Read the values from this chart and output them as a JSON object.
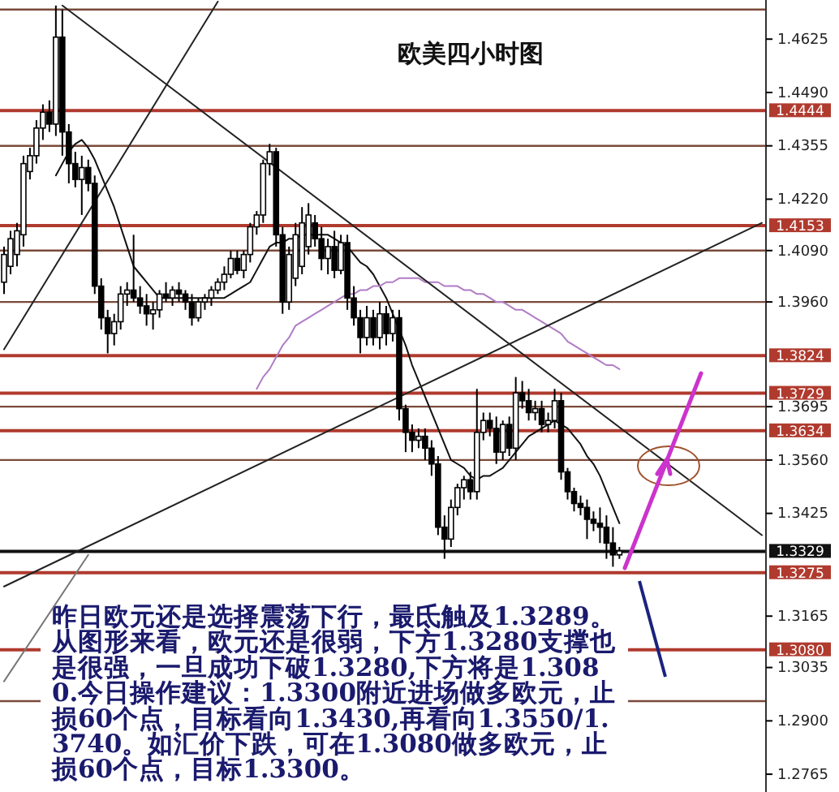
{
  "chart_data": {
    "type": "candlestick",
    "title": "欧美四小时图",
    "categories": [
      null,
      null,
      null,
      null,
      null,
      null,
      null,
      null,
      null,
      null,
      null,
      null,
      null,
      null,
      null,
      null,
      null,
      null,
      null,
      null,
      null,
      null,
      null,
      null,
      null,
      null,
      null,
      null,
      null,
      null,
      null,
      null,
      null,
      null,
      null,
      null,
      null,
      null,
      null,
      null,
      null,
      null,
      null,
      null,
      null,
      null,
      null,
      null,
      null,
      null,
      null,
      null,
      null,
      null,
      null,
      null,
      null,
      null,
      null,
      null,
      null,
      null,
      null,
      null,
      null,
      null,
      null,
      null,
      null,
      null,
      null,
      null,
      null,
      null,
      null,
      null,
      null,
      null,
      null,
      null,
      null,
      null,
      null,
      null,
      null,
      null,
      null,
      null,
      null,
      null,
      null,
      null,
      null,
      null,
      null,
      null,
      null,
      null,
      null,
      null,
      null,
      null,
      null,
      null,
      null,
      null,
      null,
      null,
      null,
      null,
      null,
      null,
      null,
      null,
      null,
      null,
      null,
      null
    ],
    "ohlc": [
      [
        1.401,
        1.41,
        1.398,
        1.408
      ],
      [
        1.405,
        1.414,
        1.403,
        1.412
      ],
      [
        1.408,
        1.416,
        1.405,
        1.414
      ],
      [
        1.413,
        1.433,
        1.41,
        1.431
      ],
      [
        1.429,
        1.435,
        1.427,
        1.433
      ],
      [
        1.433,
        1.442,
        1.431,
        1.44
      ],
      [
        1.44,
        1.446,
        1.437,
        1.444
      ],
      [
        1.444,
        1.447,
        1.439,
        1.441
      ],
      [
        1.441,
        1.471,
        1.438,
        1.463
      ],
      [
        1.463,
        1.47,
        1.433,
        1.439
      ],
      [
        1.439,
        1.441,
        1.426,
        1.431
      ],
      [
        1.431,
        1.434,
        1.425,
        1.427
      ],
      [
        1.427,
        1.433,
        1.418,
        1.43
      ],
      [
        1.43,
        1.432,
        1.424,
        1.426
      ],
      [
        1.426,
        1.428,
        1.398,
        1.4
      ],
      [
        1.4,
        1.402,
        1.389,
        1.392
      ],
      [
        1.392,
        1.394,
        1.383,
        1.388
      ],
      [
        1.388,
        1.393,
        1.385,
        1.391
      ],
      [
        1.391,
        1.4,
        1.389,
        1.398
      ],
      [
        1.398,
        1.401,
        1.395,
        1.399
      ],
      [
        1.399,
        1.413,
        1.396,
        1.397
      ],
      [
        1.397,
        1.4,
        1.393,
        1.395
      ],
      [
        1.395,
        1.398,
        1.39,
        1.393
      ],
      [
        1.393,
        1.396,
        1.389,
        1.394
      ],
      [
        1.394,
        1.399,
        1.392,
        1.398
      ],
      [
        1.398,
        1.401,
        1.396,
        1.397
      ],
      [
        1.397,
        1.4,
        1.395,
        1.399
      ],
      [
        1.399,
        1.401,
        1.396,
        1.398
      ],
      [
        1.398,
        1.399,
        1.394,
        1.396
      ],
      [
        1.396,
        1.398,
        1.39,
        1.392
      ],
      [
        1.392,
        1.397,
        1.391,
        1.396
      ],
      [
        1.396,
        1.398,
        1.394,
        1.397
      ],
      [
        1.397,
        1.4,
        1.395,
        1.399
      ],
      [
        1.399,
        1.402,
        1.398,
        1.401
      ],
      [
        1.401,
        1.405,
        1.399,
        1.403
      ],
      [
        1.403,
        1.409,
        1.402,
        1.407
      ],
      [
        1.407,
        1.409,
        1.403,
        1.404
      ],
      [
        1.404,
        1.409,
        1.402,
        1.408
      ],
      [
        1.408,
        1.416,
        1.406,
        1.415
      ],
      [
        1.415,
        1.419,
        1.413,
        1.418
      ],
      [
        1.418,
        1.432,
        1.416,
        1.431
      ],
      [
        1.431,
        1.436,
        1.428,
        1.434
      ],
      [
        1.434,
        1.435,
        1.41,
        1.413
      ],
      [
        1.413,
        1.415,
        1.393,
        1.396
      ],
      [
        1.396,
        1.41,
        1.394,
        1.408
      ],
      [
        1.402,
        1.416,
        1.4,
        1.413
      ],
      [
        1.405,
        1.42,
        1.403,
        1.416
      ],
      [
        1.41,
        1.421,
        1.408,
        1.418
      ],
      [
        1.416,
        1.418,
        1.41,
        1.412
      ],
      [
        1.412,
        1.415,
        1.404,
        1.407
      ],
      [
        1.407,
        1.412,
        1.403,
        1.41
      ],
      [
        1.41,
        1.414,
        1.402,
        1.404
      ],
      [
        1.404,
        1.413,
        1.403,
        1.411
      ],
      [
        1.411,
        1.413,
        1.394,
        1.397
      ],
      [
        1.397,
        1.4,
        1.39,
        1.392
      ],
      [
        1.392,
        1.394,
        1.383,
        1.387
      ],
      [
        1.387,
        1.395,
        1.385,
        1.392
      ],
      [
        1.392,
        1.394,
        1.385,
        1.387
      ],
      [
        1.387,
        1.396,
        1.384,
        1.393
      ],
      [
        1.393,
        1.395,
        1.385,
        1.388
      ],
      [
        1.388,
        1.394,
        1.386,
        1.392
      ],
      [
        1.392,
        1.394,
        1.366,
        1.369
      ],
      [
        1.369,
        1.37,
        1.358,
        1.363
      ],
      [
        1.363,
        1.365,
        1.358,
        1.361
      ],
      [
        1.361,
        1.364,
        1.359,
        1.362
      ],
      [
        1.362,
        1.364,
        1.356,
        1.359
      ],
      [
        1.359,
        1.361,
        1.352,
        1.355
      ],
      [
        1.355,
        1.357,
        1.337,
        1.339
      ],
      [
        1.339,
        1.342,
        1.331,
        1.336
      ],
      [
        1.336,
        1.346,
        1.334,
        1.344
      ],
      [
        1.344,
        1.35,
        1.342,
        1.349
      ],
      [
        1.349,
        1.352,
        1.346,
        1.351
      ],
      [
        1.351,
        1.353,
        1.346,
        1.348
      ],
      [
        1.348,
        1.374,
        1.346,
        1.363
      ],
      [
        1.363,
        1.368,
        1.361,
        1.366
      ],
      [
        1.366,
        1.368,
        1.362,
        1.364
      ],
      [
        1.364,
        1.367,
        1.355,
        1.358
      ],
      [
        1.358,
        1.366,
        1.356,
        1.365
      ],
      [
        1.365,
        1.367,
        1.357,
        1.359
      ],
      [
        1.359,
        1.377,
        1.356,
        1.373
      ],
      [
        1.373,
        1.376,
        1.369,
        1.371
      ],
      [
        1.371,
        1.374,
        1.366,
        1.368
      ],
      [
        1.368,
        1.371,
        1.366,
        1.369
      ],
      [
        1.369,
        1.371,
        1.363,
        1.365
      ],
      [
        1.365,
        1.368,
        1.363,
        1.366
      ],
      [
        1.366,
        1.374,
        1.364,
        1.371
      ],
      [
        1.371,
        1.373,
        1.351,
        1.353
      ],
      [
        1.353,
        1.354,
        1.346,
        1.348
      ],
      [
        1.348,
        1.349,
        1.343,
        1.345
      ],
      [
        1.345,
        1.347,
        1.342,
        1.344
      ],
      [
        1.344,
        1.346,
        1.336,
        1.341
      ],
      [
        1.341,
        1.343,
        1.338,
        1.34
      ],
      [
        1.34,
        1.344,
        1.335,
        1.339
      ],
      [
        1.339,
        1.342,
        1.331,
        1.335
      ],
      [
        1.335,
        1.339,
        1.329,
        1.332
      ],
      [
        1.332,
        1.334,
        1.331,
        1.333
      ],
      null,
      null,
      null,
      null,
      null,
      null,
      null,
      null,
      null,
      null,
      null,
      null,
      null,
      null,
      null,
      null,
      null,
      null,
      null,
      null,
      null,
      null
    ],
    "series": [
      {
        "type": "line",
        "color": "#111111",
        "values": [
          null,
          null,
          null,
          null,
          null,
          null,
          null,
          null,
          1.428,
          1.431,
          1.434,
          1.436,
          1.437,
          1.435,
          1.432,
          1.428,
          1.424,
          1.42,
          1.415,
          1.41,
          1.405,
          1.403,
          1.401,
          1.399,
          1.397,
          1.397,
          1.397,
          1.397,
          1.397,
          1.397,
          1.397,
          1.397,
          1.397,
          1.397,
          1.397,
          1.398,
          1.399,
          1.4,
          1.401,
          1.404,
          1.407,
          1.41,
          1.411,
          1.411,
          1.412,
          1.412,
          1.413,
          1.413,
          1.413,
          1.413,
          1.413,
          1.412,
          1.411,
          1.41,
          1.408,
          1.406,
          1.405,
          1.403,
          1.4,
          1.397,
          1.393,
          1.389,
          1.385,
          1.38,
          1.376,
          1.372,
          1.368,
          1.364,
          1.36,
          1.356,
          1.355,
          1.354,
          1.352,
          1.351,
          1.352,
          1.352,
          1.353,
          1.354,
          1.356,
          1.358,
          1.36,
          1.362,
          1.363,
          1.364,
          1.365,
          1.366,
          1.365,
          1.364,
          1.362,
          1.36,
          1.357,
          1.355,
          1.352,
          1.348,
          1.344,
          1.34,
          null,
          null,
          null,
          null,
          null,
          null,
          null,
          null,
          null,
          null,
          null,
          null,
          null,
          null,
          null,
          null,
          null,
          null,
          null,
          null,
          null,
          null
        ]
      },
      {
        "type": "line",
        "color": "#b07cc6",
        "values": [
          null,
          null,
          null,
          null,
          null,
          null,
          null,
          null,
          null,
          null,
          null,
          null,
          null,
          null,
          null,
          null,
          null,
          null,
          null,
          null,
          null,
          null,
          null,
          null,
          null,
          null,
          null,
          null,
          null,
          null,
          null,
          null,
          null,
          null,
          null,
          null,
          null,
          null,
          null,
          1.374,
          1.377,
          1.379,
          1.382,
          1.385,
          1.387,
          1.39,
          1.391,
          1.392,
          1.393,
          1.394,
          1.395,
          1.396,
          1.397,
          1.398,
          1.398,
          1.399,
          1.399,
          1.4,
          1.4,
          1.401,
          1.401,
          1.402,
          1.402,
          1.402,
          1.402,
          1.401,
          1.401,
          1.401,
          1.4,
          1.4,
          1.4,
          1.399,
          1.399,
          1.398,
          1.398,
          1.397,
          1.396,
          1.396,
          1.395,
          1.394,
          1.394,
          1.393,
          1.392,
          1.391,
          1.39,
          1.389,
          1.388,
          1.386,
          1.385,
          1.384,
          1.383,
          1.382,
          1.381,
          1.38,
          1.38,
          1.379,
          null,
          null,
          null,
          null,
          null,
          null,
          null,
          null,
          null,
          null,
          null,
          null,
          null,
          null,
          null,
          null,
          null,
          null,
          null,
          null,
          null,
          null
        ]
      },
      {
        "type": "line",
        "color": "#222222",
        "values": [
          null,
          null,
          null,
          null,
          null,
          null,
          null,
          null,
          null,
          1.471,
          null,
          null,
          null,
          null,
          null,
          null,
          null,
          null,
          null,
          null,
          null,
          null,
          null,
          null,
          null,
          null,
          null,
          null,
          null,
          null,
          null,
          null,
          null,
          null,
          null,
          null,
          null,
          null,
          null,
          null,
          null,
          null,
          null,
          null,
          null,
          null,
          null,
          null,
          null,
          null,
          null,
          null,
          null,
          null,
          null,
          null,
          null,
          null,
          null,
          null,
          null,
          null,
          null,
          null,
          null,
          null,
          null,
          null,
          null,
          null,
          null,
          null,
          null,
          null,
          null,
          null,
          null,
          null,
          null,
          null,
          null,
          null,
          null,
          null,
          null,
          null,
          null,
          null,
          null,
          null,
          null,
          null,
          null,
          null,
          null,
          null,
          null,
          null,
          null,
          null,
          null,
          null,
          null,
          null,
          null,
          null,
          null,
          null,
          null,
          null,
          null,
          null,
          null,
          null,
          null,
          null,
          null,
          1.337
        ]
      },
      {
        "type": "line",
        "color": "#222222",
        "values": [
          1.384,
          null,
          null,
          null,
          null,
          null,
          null,
          null,
          null,
          null,
          null,
          null,
          null,
          null,
          null,
          null,
          null,
          null,
          null,
          null,
          null,
          null,
          null,
          null,
          null,
          null,
          null,
          null,
          null,
          null,
          null,
          null,
          null,
          1.472,
          null,
          null,
          null,
          null,
          null,
          null,
          null,
          null,
          null,
          null,
          null,
          null,
          null,
          null,
          null,
          null,
          null,
          null,
          null,
          null,
          null,
          null,
          null,
          null,
          null,
          null,
          null,
          null,
          null,
          null,
          null,
          null,
          null,
          null,
          null,
          null,
          null,
          null,
          null,
          null,
          null,
          null,
          null,
          null,
          null,
          null,
          null,
          null,
          null,
          null,
          null,
          null,
          null,
          null,
          null,
          null,
          null,
          null,
          null,
          null,
          null,
          null,
          null,
          null,
          null,
          null,
          null,
          null,
          null,
          null,
          null,
          null,
          null,
          null,
          null,
          null,
          null,
          null,
          null,
          null,
          null,
          null,
          null,
          null
        ]
      },
      {
        "type": "line",
        "color": "#222222",
        "values": [
          1.324,
          null,
          null,
          null,
          null,
          null,
          null,
          null,
          null,
          null,
          null,
          null,
          null,
          null,
          null,
          null,
          null,
          null,
          null,
          null,
          null,
          null,
          null,
          null,
          null,
          null,
          null,
          null,
          null,
          null,
          null,
          null,
          null,
          null,
          null,
          null,
          null,
          null,
          null,
          null,
          null,
          null,
          null,
          null,
          null,
          null,
          null,
          null,
          null,
          null,
          null,
          null,
          null,
          null,
          null,
          null,
          null,
          null,
          null,
          null,
          null,
          null,
          null,
          null,
          null,
          null,
          null,
          null,
          null,
          null,
          null,
          null,
          null,
          null,
          null,
          null,
          null,
          null,
          null,
          null,
          null,
          null,
          null,
          null,
          null,
          null,
          null,
          null,
          null,
          null,
          null,
          null,
          null,
          null,
          null,
          null,
          null,
          null,
          null,
          null,
          null,
          null,
          null,
          null,
          null,
          null,
          null,
          null,
          null,
          null,
          null,
          null,
          null,
          null,
          null,
          null,
          null,
          1.416
        ]
      },
      {
        "type": "line",
        "color": "#777777",
        "values": [
          1.3,
          null,
          null,
          null,
          null,
          null,
          null,
          null,
          null,
          null,
          null,
          null,
          null,
          1.332,
          null,
          null,
          null,
          null,
          null,
          null,
          null,
          null,
          null,
          null,
          null,
          null,
          null,
          null,
          null,
          null,
          null,
          null,
          null,
          null,
          null,
          null,
          null,
          null,
          null,
          null,
          null,
          null,
          null,
          null,
          null,
          null,
          null,
          null,
          null,
          null,
          null,
          null,
          null,
          null,
          null,
          null,
          null,
          null,
          null,
          null,
          null,
          null,
          null,
          null,
          null,
          null,
          null,
          null,
          null,
          null,
          null,
          null,
          null,
          null,
          null,
          null,
          null,
          null,
          null,
          null,
          null,
          null,
          null,
          null,
          null,
          null,
          null,
          null,
          null,
          null,
          null,
          null,
          null,
          null,
          null,
          null,
          null,
          null,
          null,
          null,
          null,
          null,
          null,
          null,
          null,
          null,
          null,
          null,
          null,
          null,
          null,
          null,
          null,
          null,
          null,
          null,
          null,
          null
        ]
      }
    ],
    "ylim": [
      1.272,
      1.4724
    ],
    "yticks": [
      1.4625,
      {
        "value": 1.449,
        "label": "1.4490"
      },
      1.4355,
      {
        "value": 1.422,
        "label": "1.4220"
      },
      {
        "value": 1.409,
        "label": "1.4090"
      },
      {
        "value": 1.396,
        "label": "1.3960"
      },
      1.3695,
      {
        "value": 1.356,
        "label": "1.3560"
      },
      1.3425,
      1.3165,
      1.3035,
      {
        "value": 1.29,
        "label": "1.2900"
      },
      1.2765
    ],
    "tick_labels": "y",
    "ref_lines": [
      {
        "axis": "y",
        "value": 1.47,
        "color": "#7a4a3a"
      },
      {
        "axis": "y",
        "value": 1.4444,
        "label": "1.4444",
        "color": "#b03a2e"
      },
      {
        "axis": "y",
        "value": 1.4355,
        "color": "#7a4a3a"
      },
      {
        "axis": "y",
        "value": 1.4153,
        "label": "1.4153",
        "color": "#b03a2e"
      },
      {
        "axis": "y",
        "value": 1.409,
        "color": "#7a4a3a"
      },
      {
        "axis": "y",
        "value": 1.396,
        "color": "#7a4a3a"
      },
      {
        "axis": "y",
        "value": 1.3824,
        "label": "1.3824",
        "color": "#b03a2e"
      },
      {
        "axis": "y",
        "value": 1.3729,
        "label": "1.3729",
        "color": "#b03a2e"
      },
      {
        "axis": "y",
        "value": 1.3695,
        "color": "#7a4a3a"
      },
      {
        "axis": "y",
        "value": 1.3634,
        "label": "1.3634",
        "color": "#b03a2e"
      },
      {
        "axis": "y",
        "value": 1.356,
        "color": "#7a4a3a"
      },
      {
        "axis": "y",
        "value": 1.3329,
        "label": "1.3329",
        "color": "#111111"
      },
      {
        "axis": "y",
        "value": 1.3275,
        "label": "1.3275",
        "color": "#b03a2e"
      },
      {
        "axis": "y",
        "value": 1.308,
        "label": "1.3080",
        "color": "#b03a2e"
      },
      {
        "axis": "y",
        "value": 1.295,
        "color": "#7a4a3a"
      }
    ],
    "annotations": [
      "昨日欧元还是选择震荡下行，最氐触及1.3289。从图形来看，欧元还是很弱，下方1.3280支撑也是很强，一旦成功下破1.3280,下方将是1.3080.今日操作建议：1.3300附近进场做多欧元，止损60个点，目标看向1.3430,再看向1.3550/1.3740。如汇价下跌，可在1.3080做多欧元，止损60个点，目标1.3300。"
    ],
    "grid": false
  }
}
